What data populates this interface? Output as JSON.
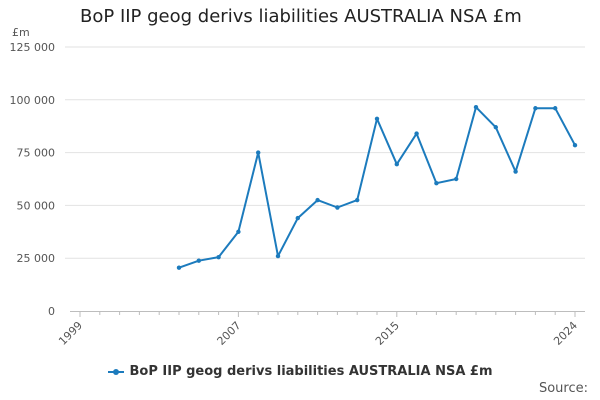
{
  "chart_data": {
    "type": "line",
    "title": "BoP IIP geog derivs liabilities AUSTRALIA NSA £m",
    "unit_label": "£m",
    "x_range": [
      1999,
      2024
    ],
    "x_ticks": [
      1999,
      2007,
      2015,
      2024
    ],
    "y_range": [
      0,
      125000
    ],
    "y_ticks": [
      0,
      25000,
      50000,
      75000,
      100000,
      125000
    ],
    "y_tick_labels": [
      "0",
      "25 000",
      "50 000",
      "75 000",
      "100 000",
      "125 000"
    ],
    "grid": true,
    "legend_position": "bottom",
    "series": [
      {
        "name": "BoP IIP geog derivs liabilities AUSTRALIA NSA £m",
        "color": "#1c7bbd",
        "points": [
          {
            "x": 2004,
            "y": 20500
          },
          {
            "x": 2005,
            "y": 23800
          },
          {
            "x": 2006,
            "y": 25500
          },
          {
            "x": 2007,
            "y": 37500
          },
          {
            "x": 2008,
            "y": 75000
          },
          {
            "x": 2009,
            "y": 26000
          },
          {
            "x": 2010,
            "y": 44000
          },
          {
            "x": 2011,
            "y": 52500
          },
          {
            "x": 2012,
            "y": 49000
          },
          {
            "x": 2013,
            "y": 52500
          },
          {
            "x": 2014,
            "y": 91000
          },
          {
            "x": 2015,
            "y": 69500
          },
          {
            "x": 2016,
            "y": 84000
          },
          {
            "x": 2017,
            "y": 60500
          },
          {
            "x": 2018,
            "y": 62500
          },
          {
            "x": 2019,
            "y": 96500
          },
          {
            "x": 2020,
            "y": 87000
          },
          {
            "x": 2021,
            "y": 66000
          },
          {
            "x": 2022,
            "y": 96000
          },
          {
            "x": 2023,
            "y": 96000
          },
          {
            "x": 2024,
            "y": 78500
          }
        ]
      }
    ],
    "source_label": "Source:"
  }
}
